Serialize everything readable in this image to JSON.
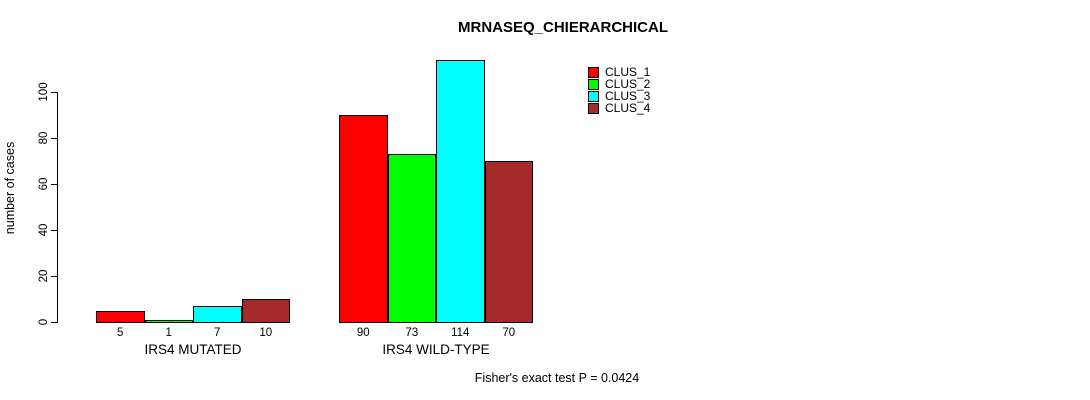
{
  "title": "MRNASEQ_CHIERARCHICAL",
  "ylabel": "number of cases",
  "footer": "Fisher's exact test P = 0.0424",
  "legend": {
    "position": "top-right",
    "items": [
      {
        "label": "CLUS_1",
        "color": "#FF0000"
      },
      {
        "label": "CLUS_2",
        "color": "#00FF00"
      },
      {
        "label": "CLUS_3",
        "color": "#00FFFF"
      },
      {
        "label": "CLUS_4",
        "color": "#A52A2A"
      }
    ]
  },
  "chart_data": {
    "type": "bar",
    "title": "MRNASEQ_CHIERARCHICAL",
    "ylabel": "number of cases",
    "xlabel": "",
    "categories": [
      "IRS4 MUTATED",
      "IRS4 WILD-TYPE"
    ],
    "series": [
      {
        "name": "CLUS_1",
        "color": "#FF0000",
        "values": [
          5,
          90
        ]
      },
      {
        "name": "CLUS_2",
        "color": "#00FF00",
        "values": [
          1,
          73
        ]
      },
      {
        "name": "CLUS_3",
        "color": "#00FFFF",
        "values": [
          7,
          114
        ]
      },
      {
        "name": "CLUS_4",
        "color": "#A52A2A",
        "values": [
          10,
          70
        ]
      }
    ],
    "bar_value_labels": [
      [
        "5",
        "1",
        "7",
        "10"
      ],
      [
        "90",
        "73",
        "114",
        "70"
      ]
    ],
    "yticks": [
      0,
      20,
      40,
      60,
      80,
      100
    ],
    "ylim": [
      0,
      115
    ],
    "grid": false,
    "legend_position": "top-right",
    "annotation": "Fisher's exact test P = 0.0424"
  }
}
